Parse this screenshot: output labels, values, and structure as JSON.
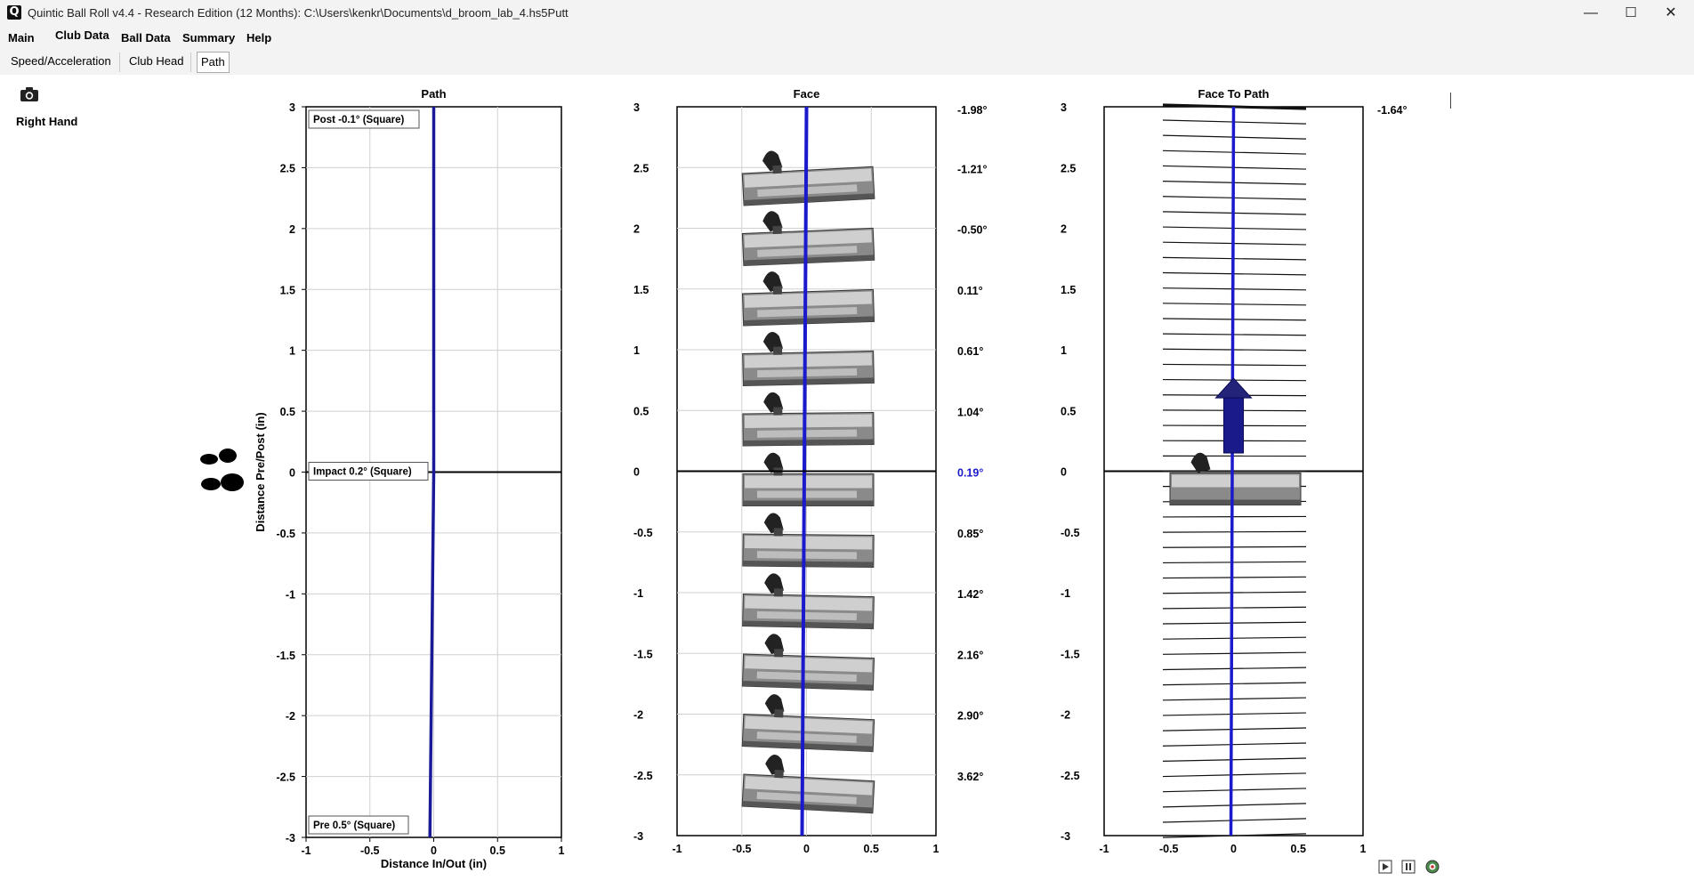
{
  "window": {
    "title": "Quintic Ball Roll v4.4 - Research Edition (12 Months): C:\\Users\\kenkr\\Documents\\d_broom_lab_4.hs5Putt",
    "app_icon": "Q",
    "minimize": "—",
    "maximize": "☐",
    "close": "✕"
  },
  "menu": [
    {
      "label": "Main"
    },
    {
      "label": "Club Data"
    },
    {
      "label": "Ball Data"
    },
    {
      "label": "Summary"
    },
    {
      "label": "Help"
    }
  ],
  "subtabs": [
    {
      "label": "Speed/Acceleration"
    },
    {
      "label": "Club Head"
    },
    {
      "label": "Path"
    }
  ],
  "sidebar": {
    "camera_icon": "camera-icon",
    "hand_label": "Right Hand",
    "feet_icon": "footprints-icon"
  },
  "chart_data": [
    {
      "type": "line",
      "title": "Path",
      "xlabel": "Distance In/Out (in)",
      "ylabel": "Distance Pre/Post (in)",
      "xlim": [
        -1,
        1
      ],
      "ylim": [
        -3,
        3
      ],
      "x_ticks": [
        "-1",
        "-0.5",
        "0",
        "0.5",
        "1"
      ],
      "y_ticks": [
        "3",
        "2.5",
        "2",
        "1.5",
        "1",
        "0.5",
        "0",
        "-0.5",
        "-1",
        "-1.5",
        "-2",
        "-2.5",
        "-3"
      ],
      "grid": true,
      "annotations": [
        {
          "text": "Post  -0.1° (Square)",
          "y": 3
        },
        {
          "text": "Impact  0.2° (Square)",
          "y": 0
        },
        {
          "text": "Pre  0.5° (Square)",
          "y": -3
        }
      ],
      "series": [
        {
          "values_x": [
            -0.03,
            -0.02,
            -0.01,
            0.0,
            0.0,
            0.0,
            0.0
          ],
          "values_y": [
            -3,
            -2,
            -1,
            0,
            1,
            2,
            3
          ]
        }
      ]
    },
    {
      "type": "line",
      "title": "Face",
      "xlim": [
        -1,
        1
      ],
      "ylim": [
        -3,
        3
      ],
      "x_ticks": [
        "-1",
        "-0.5",
        "0",
        "0.5",
        "1"
      ],
      "y_ticks": [
        "3",
        "2.5",
        "2",
        "1.5",
        "1",
        "0.5",
        "0",
        "-0.5",
        "-1",
        "-1.5",
        "-2",
        "-2.5",
        "-3"
      ],
      "grid": true,
      "face_angles": [
        {
          "y": 3,
          "label": "-1.98°"
        },
        {
          "y": 2.5,
          "label": "-1.21°"
        },
        {
          "y": 2,
          "label": "-0.50°"
        },
        {
          "y": 1.5,
          "label": "0.11°"
        },
        {
          "y": 1,
          "label": "0.61°"
        },
        {
          "y": 0.5,
          "label": "1.04°"
        },
        {
          "y": 0,
          "label": "0.19°",
          "highlight": true
        },
        {
          "y": -0.5,
          "label": "0.85°"
        },
        {
          "y": -1,
          "label": "1.42°"
        },
        {
          "y": -1.5,
          "label": "2.16°"
        },
        {
          "y": -2,
          "label": "2.90°"
        },
        {
          "y": -2.5,
          "label": "3.62°"
        }
      ],
      "putter_icon": "putter-head-icon",
      "highlight_color": "#1a1acc"
    },
    {
      "type": "line",
      "title": "Face To Path",
      "xlim": [
        -1,
        1
      ],
      "ylim": [
        -3,
        3
      ],
      "x_ticks": [
        "-1",
        "-0.5",
        "0",
        "0.5",
        "1"
      ],
      "y_ticks": [
        "3",
        "2.5",
        "2",
        "1.5",
        "1",
        "0.5",
        "0",
        "-0.5",
        "-1",
        "-1.5",
        "-2",
        "-2.5",
        "-3"
      ],
      "value_label": "-1.64°",
      "direction_arrow_icon": "direction-arrow-icon"
    }
  ],
  "playback": {
    "play_icon": "play-icon",
    "pause_icon": "pause-icon",
    "target_icon": "target-icon"
  }
}
